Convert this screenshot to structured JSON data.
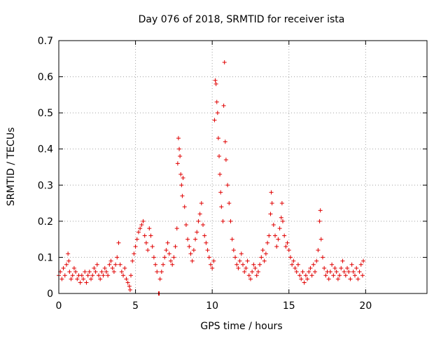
{
  "chart_data": {
    "type": "scatter",
    "title": "Day 076 of 2018, SRMTID for receiver ista",
    "xlabel": "GPS time / hours",
    "ylabel": "SRMTID / TECUs",
    "xlim": [
      0,
      24
    ],
    "ylim": [
      0,
      0.7
    ],
    "xticks": [
      0,
      5,
      10,
      15,
      20
    ],
    "yticks": [
      0,
      0.1,
      0.2,
      0.3,
      0.4,
      0.5,
      0.6,
      0.7
    ],
    "xtick_labels": [
      "0",
      "5",
      "10",
      "15",
      "20"
    ],
    "ytick_labels": [
      "0",
      "0.1",
      "0.2",
      "0.3",
      "0.4",
      "0.5",
      "0.6",
      "0.7"
    ],
    "grid": true,
    "marker": "+",
    "color": "#e00000",
    "series": [
      {
        "name": "SRMTID",
        "points": [
          [
            0.0,
            0.05
          ],
          [
            0.1,
            0.06
          ],
          [
            0.2,
            0.04
          ],
          [
            0.3,
            0.07
          ],
          [
            0.4,
            0.05
          ],
          [
            0.5,
            0.08
          ],
          [
            0.6,
            0.11
          ],
          [
            0.65,
            0.09
          ],
          [
            0.7,
            0.06
          ],
          [
            0.8,
            0.04
          ],
          [
            0.9,
            0.05
          ],
          [
            1.0,
            0.07
          ],
          [
            1.1,
            0.06
          ],
          [
            1.2,
            0.04
          ],
          [
            1.3,
            0.05
          ],
          [
            1.4,
            0.03
          ],
          [
            1.5,
            0.05
          ],
          [
            1.6,
            0.04
          ],
          [
            1.7,
            0.06
          ],
          [
            1.8,
            0.03
          ],
          [
            1.9,
            0.05
          ],
          [
            2.0,
            0.06
          ],
          [
            2.1,
            0.04
          ],
          [
            2.2,
            0.05
          ],
          [
            2.3,
            0.07
          ],
          [
            2.4,
            0.06
          ],
          [
            2.5,
            0.08
          ],
          [
            2.6,
            0.05
          ],
          [
            2.7,
            0.04
          ],
          [
            2.8,
            0.06
          ],
          [
            2.9,
            0.05
          ],
          [
            3.0,
            0.07
          ],
          [
            3.1,
            0.06
          ],
          [
            3.2,
            0.05
          ],
          [
            3.3,
            0.08
          ],
          [
            3.4,
            0.09
          ],
          [
            3.5,
            0.07
          ],
          [
            3.6,
            0.06
          ],
          [
            3.7,
            0.08
          ],
          [
            3.8,
            0.1
          ],
          [
            3.9,
            0.14
          ],
          [
            4.0,
            0.08
          ],
          [
            4.1,
            0.06
          ],
          [
            4.2,
            0.05
          ],
          [
            4.3,
            0.07
          ],
          [
            4.4,
            0.04
          ],
          [
            4.5,
            0.03
          ],
          [
            4.6,
            0.02
          ],
          [
            4.65,
            0.01
          ],
          [
            4.7,
            0.05
          ],
          [
            4.8,
            0.09
          ],
          [
            4.9,
            0.11
          ],
          [
            5.0,
            0.13
          ],
          [
            5.1,
            0.15
          ],
          [
            5.2,
            0.17
          ],
          [
            5.3,
            0.18
          ],
          [
            5.4,
            0.19
          ],
          [
            5.5,
            0.2
          ],
          [
            5.6,
            0.16
          ],
          [
            5.7,
            0.14
          ],
          [
            5.8,
            0.12
          ],
          [
            5.9,
            0.18
          ],
          [
            6.0,
            0.16
          ],
          [
            6.1,
            0.13
          ],
          [
            6.2,
            0.1
          ],
          [
            6.3,
            0.08
          ],
          [
            6.4,
            0.06
          ],
          [
            6.5,
            0.0
          ],
          [
            6.55,
            0.0
          ],
          [
            6.6,
            0.04
          ],
          [
            6.7,
            0.06
          ],
          [
            6.8,
            0.08
          ],
          [
            6.9,
            0.1
          ],
          [
            7.0,
            0.12
          ],
          [
            7.1,
            0.14
          ],
          [
            7.2,
            0.11
          ],
          [
            7.3,
            0.09
          ],
          [
            7.4,
            0.08
          ],
          [
            7.5,
            0.1
          ],
          [
            7.6,
            0.13
          ],
          [
            7.7,
            0.18
          ],
          [
            7.75,
            0.36
          ],
          [
            7.8,
            0.43
          ],
          [
            7.85,
            0.4
          ],
          [
            7.9,
            0.38
          ],
          [
            7.95,
            0.33
          ],
          [
            8.0,
            0.3
          ],
          [
            8.05,
            0.27
          ],
          [
            8.1,
            0.32
          ],
          [
            8.2,
            0.24
          ],
          [
            8.3,
            0.19
          ],
          [
            8.4,
            0.15
          ],
          [
            8.5,
            0.13
          ],
          [
            8.6,
            0.11
          ],
          [
            8.7,
            0.09
          ],
          [
            8.8,
            0.12
          ],
          [
            8.9,
            0.15
          ],
          [
            9.0,
            0.17
          ],
          [
            9.1,
            0.2
          ],
          [
            9.2,
            0.22
          ],
          [
            9.3,
            0.25
          ],
          [
            9.4,
            0.19
          ],
          [
            9.5,
            0.16
          ],
          [
            9.6,
            0.14
          ],
          [
            9.7,
            0.12
          ],
          [
            9.8,
            0.1
          ],
          [
            9.9,
            0.08
          ],
          [
            10.0,
            0.07
          ],
          [
            10.1,
            0.09
          ],
          [
            10.15,
            0.48
          ],
          [
            10.2,
            0.59
          ],
          [
            10.25,
            0.58
          ],
          [
            10.3,
            0.53
          ],
          [
            10.35,
            0.5
          ],
          [
            10.4,
            0.43
          ],
          [
            10.45,
            0.38
          ],
          [
            10.5,
            0.33
          ],
          [
            10.55,
            0.28
          ],
          [
            10.6,
            0.24
          ],
          [
            10.7,
            0.2
          ],
          [
            10.75,
            0.52
          ],
          [
            10.8,
            0.64
          ],
          [
            10.85,
            0.42
          ],
          [
            10.9,
            0.37
          ],
          [
            11.0,
            0.3
          ],
          [
            11.1,
            0.25
          ],
          [
            11.2,
            0.2
          ],
          [
            11.3,
            0.15
          ],
          [
            11.4,
            0.12
          ],
          [
            11.5,
            0.1
          ],
          [
            11.6,
            0.08
          ],
          [
            11.7,
            0.07
          ],
          [
            11.8,
            0.09
          ],
          [
            11.9,
            0.11
          ],
          [
            12.0,
            0.08
          ],
          [
            12.1,
            0.06
          ],
          [
            12.2,
            0.07
          ],
          [
            12.3,
            0.09
          ],
          [
            12.4,
            0.05
          ],
          [
            12.5,
            0.04
          ],
          [
            12.6,
            0.06
          ],
          [
            12.7,
            0.08
          ],
          [
            12.8,
            0.07
          ],
          [
            12.9,
            0.05
          ],
          [
            13.0,
            0.06
          ],
          [
            13.1,
            0.08
          ],
          [
            13.2,
            0.1
          ],
          [
            13.3,
            0.12
          ],
          [
            13.4,
            0.09
          ],
          [
            13.5,
            0.11
          ],
          [
            13.6,
            0.14
          ],
          [
            13.7,
            0.16
          ],
          [
            13.8,
            0.22
          ],
          [
            13.85,
            0.28
          ],
          [
            13.9,
            0.25
          ],
          [
            14.0,
            0.19
          ],
          [
            14.1,
            0.16
          ],
          [
            14.2,
            0.13
          ],
          [
            14.3,
            0.15
          ],
          [
            14.4,
            0.18
          ],
          [
            14.5,
            0.21
          ],
          [
            14.55,
            0.25
          ],
          [
            14.6,
            0.2
          ],
          [
            14.7,
            0.16
          ],
          [
            14.8,
            0.13
          ],
          [
            14.9,
            0.14
          ],
          [
            15.0,
            0.12
          ],
          [
            15.1,
            0.1
          ],
          [
            15.2,
            0.08
          ],
          [
            15.3,
            0.09
          ],
          [
            15.4,
            0.07
          ],
          [
            15.5,
            0.06
          ],
          [
            15.6,
            0.08
          ],
          [
            15.7,
            0.05
          ],
          [
            15.8,
            0.04
          ],
          [
            15.9,
            0.06
          ],
          [
            16.0,
            0.03
          ],
          [
            16.1,
            0.05
          ],
          [
            16.2,
            0.04
          ],
          [
            16.3,
            0.06
          ],
          [
            16.4,
            0.07
          ],
          [
            16.5,
            0.05
          ],
          [
            16.6,
            0.08
          ],
          [
            16.7,
            0.06
          ],
          [
            16.8,
            0.09
          ],
          [
            16.9,
            0.12
          ],
          [
            17.0,
            0.2
          ],
          [
            17.05,
            0.23
          ],
          [
            17.1,
            0.15
          ],
          [
            17.2,
            0.1
          ],
          [
            17.3,
            0.07
          ],
          [
            17.4,
            0.05
          ],
          [
            17.5,
            0.06
          ],
          [
            17.6,
            0.04
          ],
          [
            17.7,
            0.06
          ],
          [
            17.8,
            0.08
          ],
          [
            17.9,
            0.05
          ],
          [
            18.0,
            0.07
          ],
          [
            18.1,
            0.06
          ],
          [
            18.2,
            0.04
          ],
          [
            18.3,
            0.05
          ],
          [
            18.4,
            0.07
          ],
          [
            18.5,
            0.09
          ],
          [
            18.6,
            0.06
          ],
          [
            18.7,
            0.05
          ],
          [
            18.8,
            0.07
          ],
          [
            18.9,
            0.06
          ],
          [
            19.0,
            0.04
          ],
          [
            19.1,
            0.08
          ],
          [
            19.2,
            0.06
          ],
          [
            19.3,
            0.05
          ],
          [
            19.4,
            0.07
          ],
          [
            19.5,
            0.04
          ],
          [
            19.6,
            0.06
          ],
          [
            19.7,
            0.08
          ],
          [
            19.8,
            0.05
          ],
          [
            19.85,
            0.09
          ]
        ]
      }
    ]
  }
}
